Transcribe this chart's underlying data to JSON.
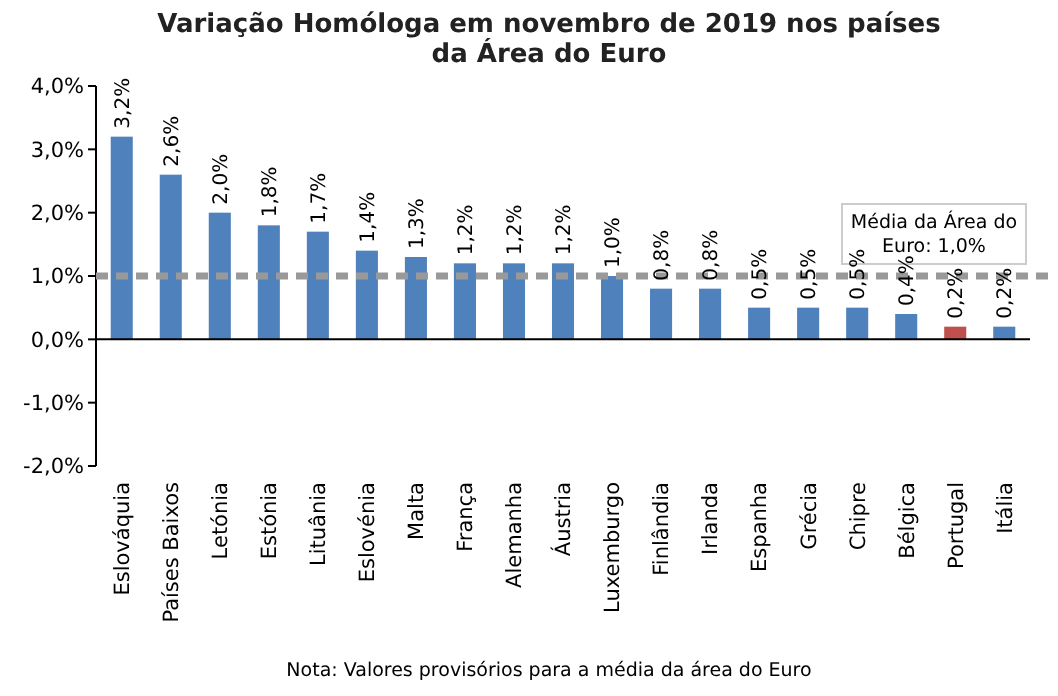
{
  "chart_data": {
    "type": "bar",
    "title": "Variação Homóloga em novembro de 2019 nos países\nda Área do Euro",
    "categories": [
      "Eslováquia",
      "Países Baixos",
      "Letónia",
      "Estónia",
      "Lituânia",
      "Eslovénia",
      "Malta",
      "França",
      "Alemanha",
      "Áustria",
      "Luxemburgo",
      "Finlândia",
      "Irlanda",
      "Espanha",
      "Grécia",
      "Chipre",
      "Bélgica",
      "Portugal",
      "Itália"
    ],
    "values": [
      3.2,
      2.6,
      2.0,
      1.8,
      1.7,
      1.4,
      1.3,
      1.2,
      1.2,
      1.2,
      1.0,
      0.8,
      0.8,
      0.5,
      0.5,
      0.5,
      0.4,
      0.2,
      0.2
    ],
    "colors": [
      "#4f81bd",
      "#4f81bd",
      "#4f81bd",
      "#4f81bd",
      "#4f81bd",
      "#4f81bd",
      "#4f81bd",
      "#4f81bd",
      "#4f81bd",
      "#4f81bd",
      "#4f81bd",
      "#4f81bd",
      "#4f81bd",
      "#4f81bd",
      "#4f81bd",
      "#4f81bd",
      "#4f81bd",
      "#c0504d",
      "#4f81bd"
    ],
    "value_labels": [
      "3,2%",
      "2,6%",
      "2,0%",
      "1,8%",
      "1,7%",
      "1,4%",
      "1,3%",
      "1,2%",
      "1,2%",
      "1,2%",
      "1,0%",
      "0,8%",
      "0,8%",
      "0,5%",
      "0,5%",
      "0,5%",
      "0,4%",
      "0,2%",
      "0,2%"
    ],
    "ylim": [
      -2,
      4
    ],
    "yticks": [
      {
        "value": -2,
        "label": "-2,0%"
      },
      {
        "value": -1,
        "label": "-1,0%"
      },
      {
        "value": 0,
        "label": "0,0%"
      },
      {
        "value": 1,
        "label": "1,0%"
      },
      {
        "value": 2,
        "label": "2,0%"
      },
      {
        "value": 3,
        "label": "3,0%"
      },
      {
        "value": 4,
        "label": "4,0%"
      }
    ],
    "ref_lines": [
      {
        "axis": "y",
        "value": 1.0,
        "label": "Média da Área do\nEuro: 1,0%",
        "color": "#999999",
        "line_style": "dashed"
      }
    ],
    "annotations": [
      "Nota: Valores provisórios para a média da área do Euro"
    ],
    "grid": false
  }
}
